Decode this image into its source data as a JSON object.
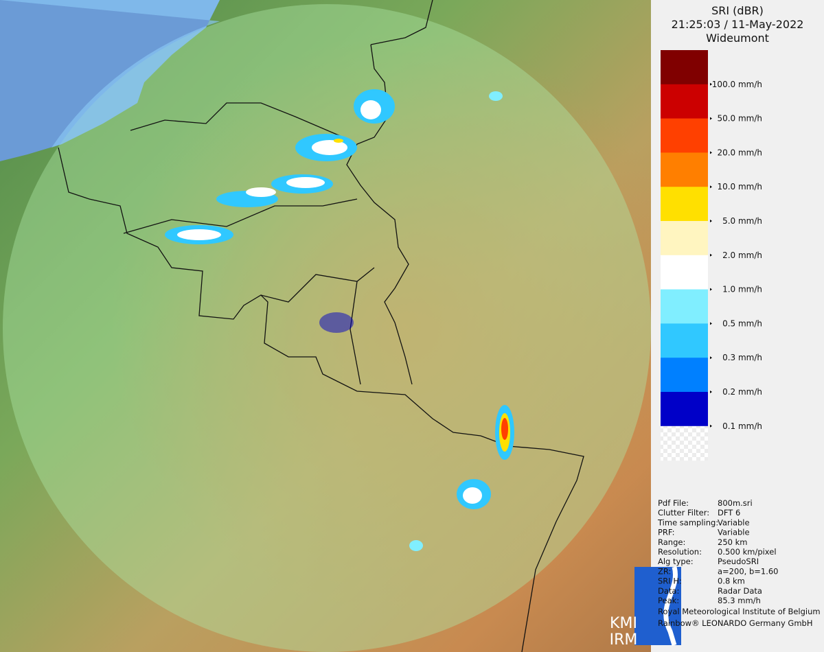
{
  "header": {
    "product": "SRI (dBR)",
    "time": "21:25:03 / 11-May-2022",
    "site": "Wideumont"
  },
  "legend": {
    "colors": [
      "#800000",
      "#cc0000",
      "#ff4000",
      "#ff7f00",
      "#ffe000",
      "#fff5c0",
      "#ffffff",
      "#80eeff",
      "#30c8ff",
      "#0080ff",
      "#0000c8",
      "transparent"
    ],
    "labels": [
      "100.0 mm/h",
      "50.0 mm/h",
      "20.0 mm/h",
      "10.0 mm/h",
      "5.0 mm/h",
      "2.0 mm/h",
      "1.0 mm/h",
      "0.5 mm/h",
      "0.3 mm/h",
      "0.2 mm/h",
      "0.1 mm/h"
    ]
  },
  "info": {
    "rows": [
      [
        "Pdf File:",
        "800m.sri"
      ],
      [
        "Clutter Filter:",
        "DFT 6"
      ],
      [
        "Time sampling:",
        "Variable"
      ],
      [
        "PRF:",
        "Variable"
      ],
      [
        "Range:",
        "250 km"
      ],
      [
        "Resolution:",
        "0.500 km/pixel"
      ],
      [
        "Alg type:",
        "PseudoSRI"
      ],
      [
        "ZR:",
        "a=200, b=1.60"
      ],
      [
        "SRI H:",
        "0.8 km"
      ],
      [
        "Data:",
        "Radar Data"
      ],
      [
        "Peak:",
        "85.3 mm/h"
      ]
    ]
  },
  "credits": [
    "Royal Meteorological Institute of Belgium",
    "Rainbow® LEONARDO Germany GmbH"
  ],
  "logo": [
    "KMI",
    "IRM"
  ]
}
